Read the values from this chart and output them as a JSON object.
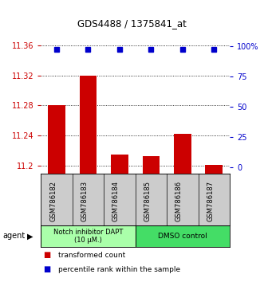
{
  "title": "GDS4488 / 1375841_at",
  "samples": [
    "GSM786182",
    "GSM786183",
    "GSM786184",
    "GSM786185",
    "GSM786186",
    "GSM786187"
  ],
  "bar_values": [
    11.28,
    11.32,
    11.215,
    11.213,
    11.243,
    11.201
  ],
  "percentile_values": [
    97,
    97,
    97,
    97,
    97,
    97
  ],
  "bar_color": "#cc0000",
  "percentile_color": "#0000cc",
  "ylim_left": [
    11.19,
    11.375
  ],
  "ylim_right": [
    -5,
    110
  ],
  "yticks_left": [
    11.2,
    11.24,
    11.28,
    11.32,
    11.36
  ],
  "yticks_right": [
    0,
    25,
    50,
    75,
    100
  ],
  "ytick_labels_left": [
    "11.2",
    "11.24",
    "11.28",
    "11.32",
    "11.36"
  ],
  "ytick_labels_right": [
    "0",
    "25",
    "50",
    "75",
    "100%"
  ],
  "group1_label": "Notch inhibitor DAPT\n(10 μM.)",
  "group1_color": "#aaffaa",
  "group2_label": "DMSO control",
  "group2_color": "#44dd66",
  "legend_label1": "transformed count",
  "legend_label2": "percentile rank within the sample",
  "agent_label": "agent",
  "bar_width": 0.55
}
